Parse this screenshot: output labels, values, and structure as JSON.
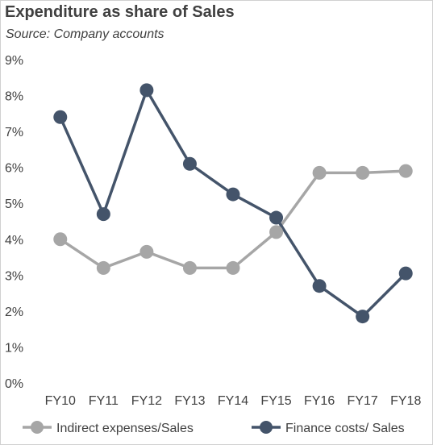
{
  "chart_data": {
    "type": "line",
    "title": "Expenditure as share of Sales",
    "subtitle": "Source: Company accounts",
    "categories": [
      "FY10",
      "FY11",
      "FY12",
      "FY13",
      "FY14",
      "FY15",
      "FY16",
      "FY17",
      "FY18"
    ],
    "ylim": [
      0,
      9
    ],
    "yticks": [
      "0%",
      "1%",
      "2%",
      "3%",
      "4%",
      "5%",
      "6%",
      "7%",
      "8%",
      "9%"
    ],
    "grid": false,
    "legend_position": "bottom",
    "series": [
      {
        "name": "Indirect expenses/Sales",
        "color": "#A6A6A6",
        "values": [
          4.0,
          3.2,
          3.65,
          3.2,
          3.2,
          4.2,
          5.85,
          5.85,
          5.9
        ]
      },
      {
        "name": "Finance costs/ Sales",
        "color": "#44546A",
        "values": [
          7.4,
          4.7,
          8.15,
          6.1,
          5.25,
          4.6,
          2.7,
          1.85,
          3.05
        ]
      }
    ]
  }
}
